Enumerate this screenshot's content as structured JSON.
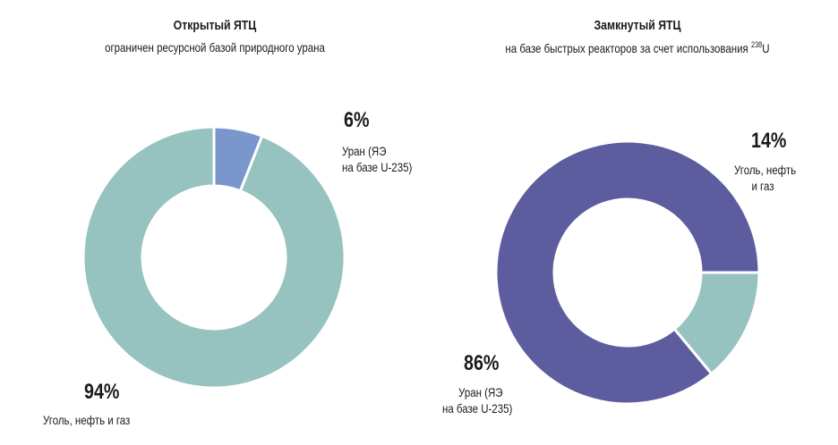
{
  "chart_data": [
    {
      "type": "pie",
      "title": "Открытый ЯТЦ",
      "subtitle": "ограничен ресурсной базой природного урана",
      "slices": [
        {
          "label_line1": "Уран (ЯЭ",
          "label_line2": "на базе U-235)",
          "value": 6,
          "value_label": "6%",
          "color": "#7b96cc"
        },
        {
          "label_line1": "Уголь, нефть и газ",
          "label_line2": "",
          "value": 94,
          "value_label": "94%",
          "color": "#96c3bf"
        }
      ]
    },
    {
      "type": "pie",
      "title": "Замкнутый ЯТЦ",
      "subtitle_main": "на базе быстрых реакторов за счет использования ",
      "subtitle_sup": "238",
      "subtitle_end": "U",
      "slices": [
        {
          "label_line1": "Уголь, нефть",
          "label_line2": "и газ",
          "value": 14,
          "value_label": "14%",
          "color": "#96c3bf"
        },
        {
          "label_line1": "Уран (ЯЭ",
          "label_line2": "на базе U-235)",
          "value": 86,
          "value_label": "86%",
          "color": "#5d5c9f"
        }
      ]
    }
  ]
}
